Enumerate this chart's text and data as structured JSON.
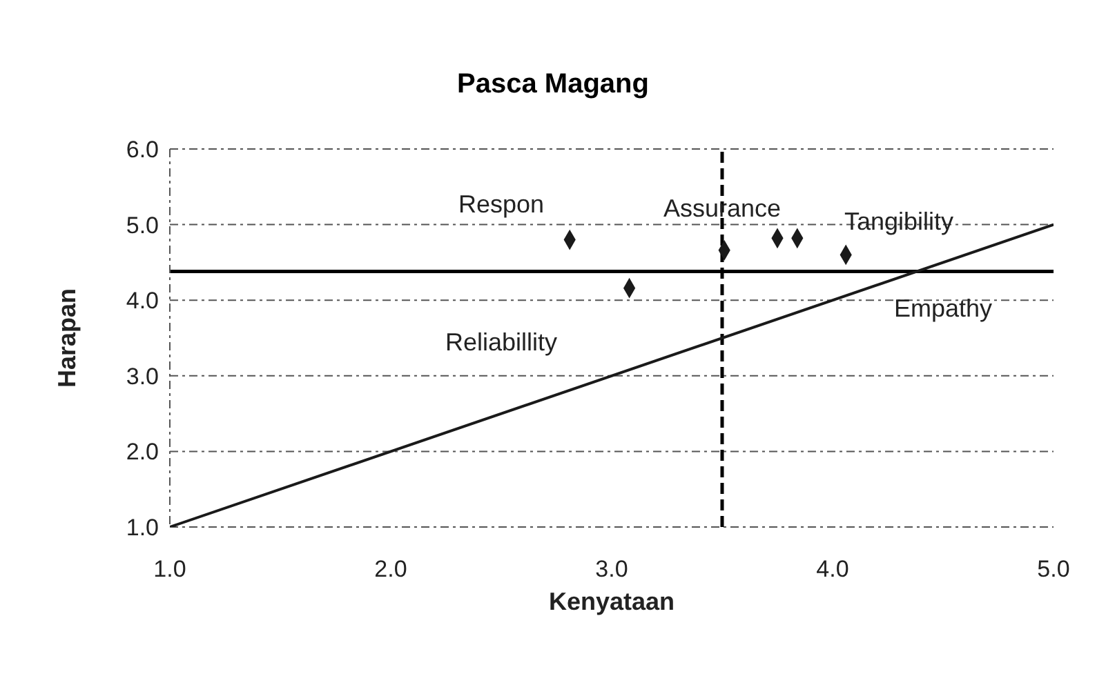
{
  "chart_data": {
    "type": "scatter",
    "title": "Pasca Magang",
    "xlabel": "Kenyataan",
    "ylabel": "Harapan",
    "xlim": [
      1,
      5
    ],
    "ylim": [
      1,
      6
    ],
    "xticks": [
      {
        "value": 1,
        "label": "1.0"
      },
      {
        "value": 2,
        "label": "2.0"
      },
      {
        "value": 3,
        "label": "3.0"
      },
      {
        "value": 4,
        "label": "4.0"
      },
      {
        "value": 5,
        "label": "5.0"
      }
    ],
    "yticks": [
      {
        "value": 1,
        "label": "1.0"
      },
      {
        "value": 2,
        "label": "2.0"
      },
      {
        "value": 3,
        "label": "3.0"
      },
      {
        "value": 4,
        "label": "4.0"
      },
      {
        "value": 5,
        "label": "5.0"
      },
      {
        "value": 6,
        "label": "6.0"
      }
    ],
    "grid": "y",
    "legend": false,
    "marker": "diamond",
    "series": [
      {
        "color": "#1a1a1a",
        "x": [
          2.81,
          3.08,
          3.51,
          3.75,
          3.84,
          4.06
        ],
        "values": [
          4.8,
          4.16,
          4.66,
          4.82,
          4.82,
          4.6
        ]
      },
      {
        "type": "line",
        "color": "#1a1a1a",
        "marker": "none",
        "line_style": "solid",
        "x": [
          1,
          5
        ],
        "values": [
          1,
          5
        ]
      }
    ],
    "ref_lines": [
      {
        "axis": "y",
        "value": 4.38,
        "line_style": "solid",
        "color": "#000000"
      },
      {
        "axis": "x",
        "value": 3.5,
        "line_style": "dashed",
        "color": "#000000"
      }
    ],
    "annotations": [
      "Respon",
      "Reliabillity",
      "Assurance",
      "Tangibility",
      "Empathy"
    ]
  }
}
